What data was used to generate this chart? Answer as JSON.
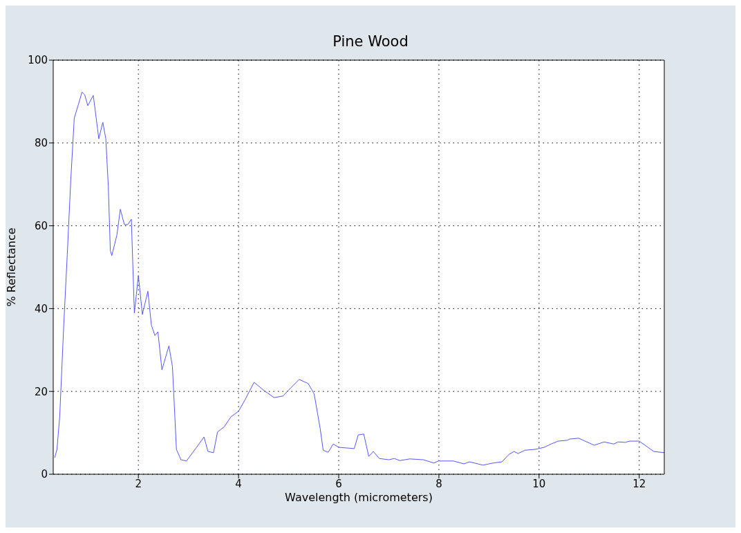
{
  "chart_data": {
    "type": "line",
    "title": "Pine Wood",
    "xlabel": "Wavelength (micrometers)",
    "ylabel": "% Reflectance",
    "xlim": [
      0.3,
      12.5
    ],
    "xticks": [
      2,
      4,
      6,
      8,
      10,
      12
    ],
    "ylim": [
      0,
      100
    ],
    "yticks": [
      0,
      20,
      40,
      60,
      80,
      100
    ],
    "grid": true,
    "legend": false,
    "marker": "none",
    "line_style": "solid",
    "series": [
      {
        "color": "#5555ff",
        "x": [
          0.33,
          0.375,
          0.43,
          0.51,
          0.58,
          0.65,
          0.72,
          0.82,
          0.875,
          0.93,
          0.99,
          1.1,
          1.21,
          1.29,
          1.35,
          1.4,
          1.44,
          1.47,
          1.57,
          1.64,
          1.72,
          1.79,
          1.86,
          1.92,
          2.0,
          2.08,
          2.19,
          2.26,
          2.33,
          2.39,
          2.47,
          2.61,
          2.68,
          2.76,
          2.85,
          2.96,
          3.15,
          3.31,
          3.39,
          3.5,
          3.58,
          3.71,
          3.85,
          4.0,
          4.13,
          4.31,
          4.51,
          4.71,
          4.89,
          4.99,
          5.21,
          5.39,
          5.51,
          5.63,
          5.69,
          5.79,
          5.89,
          6.0,
          6.31,
          6.39,
          6.5,
          6.6,
          6.69,
          6.81,
          7.0,
          7.11,
          7.22,
          7.42,
          7.69,
          7.9,
          7.99,
          8.29,
          8.5,
          8.61,
          8.88,
          9.08,
          9.26,
          9.4,
          9.5,
          9.58,
          9.72,
          9.92,
          10.1,
          10.24,
          10.38,
          10.56,
          10.61,
          10.79,
          11.1,
          11.3,
          11.49,
          11.58,
          11.72,
          11.81,
          12.0,
          12.29,
          12.5
        ],
        "values": [
          4,
          6,
          14,
          36,
          53,
          71,
          86,
          90,
          92.3,
          91.6,
          89,
          91.5,
          81,
          85,
          81,
          69.5,
          54,
          52.8,
          57.7,
          64,
          60.3,
          60.3,
          61.6,
          38.9,
          48,
          38.6,
          44.2,
          36,
          33.5,
          34.4,
          25.2,
          31,
          26,
          6,
          3.5,
          3.2,
          6.3,
          9,
          5.5,
          5.2,
          10.2,
          11.4,
          13.9,
          15.2,
          18,
          22.2,
          20.2,
          18.5,
          18.9,
          20.2,
          22.9,
          21.9,
          19.4,
          11,
          5.8,
          5.3,
          7.3,
          6.5,
          6.2,
          9.5,
          9.7,
          4.3,
          5.5,
          3.8,
          3.5,
          3.8,
          3.3,
          3.7,
          3.5,
          2.7,
          3.2,
          3.2,
          2.5,
          3.0,
          2.2,
          2.7,
          3.0,
          4.8,
          5.5,
          5.0,
          5.8,
          6.0,
          6.5,
          7.3,
          8.0,
          8.2,
          8.5,
          8.7,
          7.0,
          7.8,
          7.3,
          7.8,
          7.7,
          8.0,
          8.0,
          5.5,
          5.2
        ]
      }
    ]
  }
}
